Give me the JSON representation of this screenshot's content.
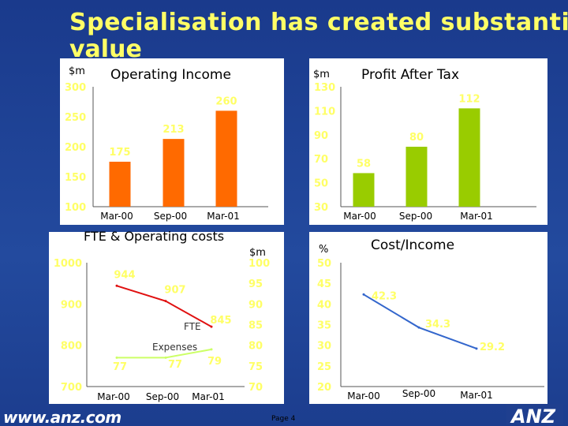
{
  "slide": {
    "title_line1": "Specialisation has created substantial",
    "title_line2": "value",
    "footer_url": "www.anz.com",
    "page_label": "Page 4",
    "logo_text": "ANZ",
    "colors": {
      "background": "#1f3f8f",
      "title": "#ffff66",
      "text": "#ffffff",
      "axis_text": "#ffff66",
      "orange": "#ff6a00",
      "green": "#99cc00",
      "red": "#e01010",
      "cost": "#ccff66",
      "cost_income_line": "#3366cc",
      "panel": "#ffffff"
    }
  },
  "chart_data": [
    {
      "id": "operating-income",
      "type": "bar",
      "title": "Operating Income",
      "unit_label": "$m",
      "categories": [
        "Mar-00",
        "Sep-00",
        "Mar-01"
      ],
      "values": [
        175,
        213,
        260
      ],
      "value_labels": [
        "175",
        "213",
        "260"
      ],
      "ylim": [
        100,
        300
      ],
      "yticks": [
        100,
        150,
        200,
        250,
        300
      ],
      "ytick_labels": [
        "100",
        "150",
        "200",
        "250",
        "300"
      ]
    },
    {
      "id": "profit-after-tax",
      "type": "bar",
      "title": "Profit After Tax",
      "unit_label": "$m",
      "categories": [
        "Mar-00",
        "Sep-00",
        "Mar-01"
      ],
      "values": [
        58,
        80,
        112
      ],
      "value_labels": [
        "58",
        "80",
        "112"
      ],
      "ylim": [
        30,
        130
      ],
      "yticks": [
        30,
        50,
        70,
        90,
        110,
        130
      ],
      "ytick_labels": [
        "30",
        "50",
        "70",
        "90",
        "110",
        "130"
      ]
    },
    {
      "id": "fte-operating-costs",
      "type": "line",
      "title": "FTE & Operating costs",
      "categories": [
        "Mar-00",
        "Sep-00",
        "Mar-01"
      ],
      "left_axis": {
        "ylim": [
          700,
          1000
        ],
        "yticks": [
          700,
          800,
          900,
          1000
        ],
        "ytick_labels": [
          "700",
          "800",
          "900",
          "1000"
        ]
      },
      "right_axis": {
        "unit_label": "$m",
        "ylim": [
          70,
          100
        ],
        "yticks": [
          70,
          75,
          80,
          85,
          90,
          95,
          100
        ],
        "ytick_labels": [
          "70",
          "75",
          "80",
          "85",
          "90",
          "95",
          "100"
        ]
      },
      "series": [
        {
          "name": "FTE",
          "axis": "left",
          "values": [
            944,
            907,
            845
          ],
          "value_labels": [
            "944",
            "907",
            "845"
          ]
        },
        {
          "name": "Expenses",
          "axis": "right",
          "values": [
            77,
            77,
            79
          ],
          "value_labels": [
            "77",
            "77",
            "79"
          ]
        }
      ]
    },
    {
      "id": "cost-income",
      "type": "line",
      "title": "Cost/Income",
      "unit_label": "%",
      "categories": [
        "Mar-00",
        "Sep-00",
        "Mar-01"
      ],
      "values": [
        42.3,
        34.3,
        29.2
      ],
      "value_labels": [
        "42.3",
        "34.3",
        "29.2"
      ],
      "ylim": [
        20,
        50
      ],
      "yticks": [
        20,
        25,
        30,
        35,
        40,
        45,
        50
      ],
      "ytick_labels": [
        "20",
        "25",
        "30",
        "35",
        "40",
        "45",
        "50"
      ]
    }
  ]
}
